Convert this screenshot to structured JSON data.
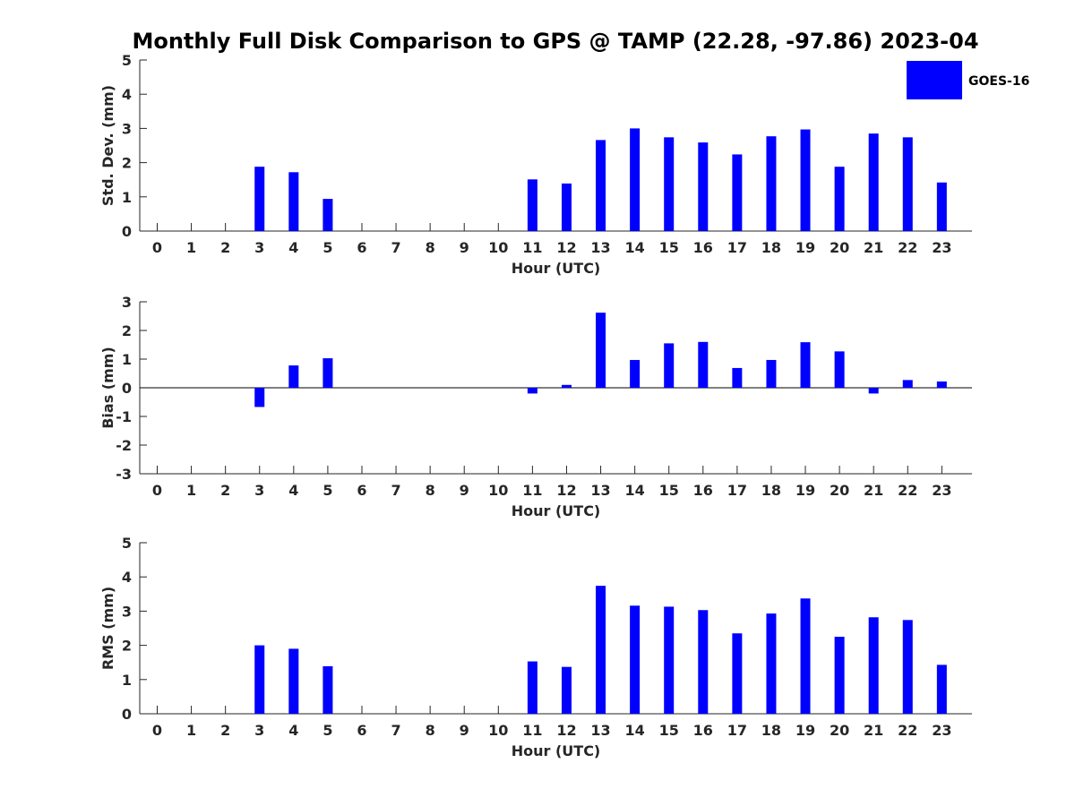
{
  "figure": {
    "title": "Monthly Full Disk Comparison to GPS @ TAMP (22.28, -97.86) 2023-04"
  },
  "legend": {
    "label": "GOES-16",
    "color": "#0000ff",
    "placement": "top-right"
  },
  "chart_data": [
    {
      "type": "bar",
      "xlabel": "Hour (UTC)",
      "ylabel": "Std. Dev. (mm)",
      "categories": [
        "0",
        "1",
        "2",
        "3",
        "4",
        "5",
        "6",
        "7",
        "8",
        "9",
        "10",
        "11",
        "12",
        "13",
        "14",
        "15",
        "16",
        "17",
        "18",
        "19",
        "20",
        "21",
        "22",
        "23"
      ],
      "series": [
        {
          "name": "GOES-16",
          "color": "#0000ff",
          "values": [
            null,
            null,
            null,
            1.88,
            1.72,
            0.94,
            null,
            null,
            null,
            null,
            null,
            1.51,
            1.39,
            2.66,
            3.0,
            2.74,
            2.59,
            2.24,
            2.77,
            2.97,
            1.88,
            2.85,
            2.74,
            1.42
          ]
        }
      ],
      "ylim": [
        0,
        5
      ],
      "yticks": [
        0,
        1,
        2,
        3,
        4,
        5
      ],
      "grid": false
    },
    {
      "type": "bar",
      "xlabel": "Hour (UTC)",
      "ylabel": "Bias (mm)",
      "categories": [
        "0",
        "1",
        "2",
        "3",
        "4",
        "5",
        "6",
        "7",
        "8",
        "9",
        "10",
        "11",
        "12",
        "13",
        "14",
        "15",
        "16",
        "17",
        "18",
        "19",
        "20",
        "21",
        "22",
        "23"
      ],
      "series": [
        {
          "name": "GOES-16",
          "color": "#0000ff",
          "values": [
            null,
            null,
            null,
            -0.67,
            0.78,
            1.03,
            null,
            null,
            null,
            null,
            null,
            -0.2,
            0.1,
            2.62,
            0.97,
            1.55,
            1.6,
            0.69,
            0.97,
            1.59,
            1.27,
            -0.2,
            0.27,
            0.22
          ]
        }
      ],
      "ylim": [
        -3,
        3
      ],
      "yticks": [
        -3,
        -2,
        -1,
        0,
        1,
        2,
        3
      ],
      "grid": false
    },
    {
      "type": "bar",
      "xlabel": "Hour (UTC)",
      "ylabel": "RMS (mm)",
      "categories": [
        "0",
        "1",
        "2",
        "3",
        "4",
        "5",
        "6",
        "7",
        "8",
        "9",
        "10",
        "11",
        "12",
        "13",
        "14",
        "15",
        "16",
        "17",
        "18",
        "19",
        "20",
        "21",
        "22",
        "23"
      ],
      "series": [
        {
          "name": "GOES-16",
          "color": "#0000ff",
          "values": [
            null,
            null,
            null,
            2.0,
            1.9,
            1.39,
            null,
            null,
            null,
            null,
            null,
            1.53,
            1.37,
            3.74,
            3.16,
            3.13,
            3.03,
            2.35,
            2.93,
            3.37,
            2.25,
            2.82,
            2.74,
            1.43
          ]
        }
      ],
      "ylim": [
        0,
        5
      ],
      "yticks": [
        0,
        1,
        2,
        3,
        4,
        5
      ],
      "grid": false
    }
  ]
}
